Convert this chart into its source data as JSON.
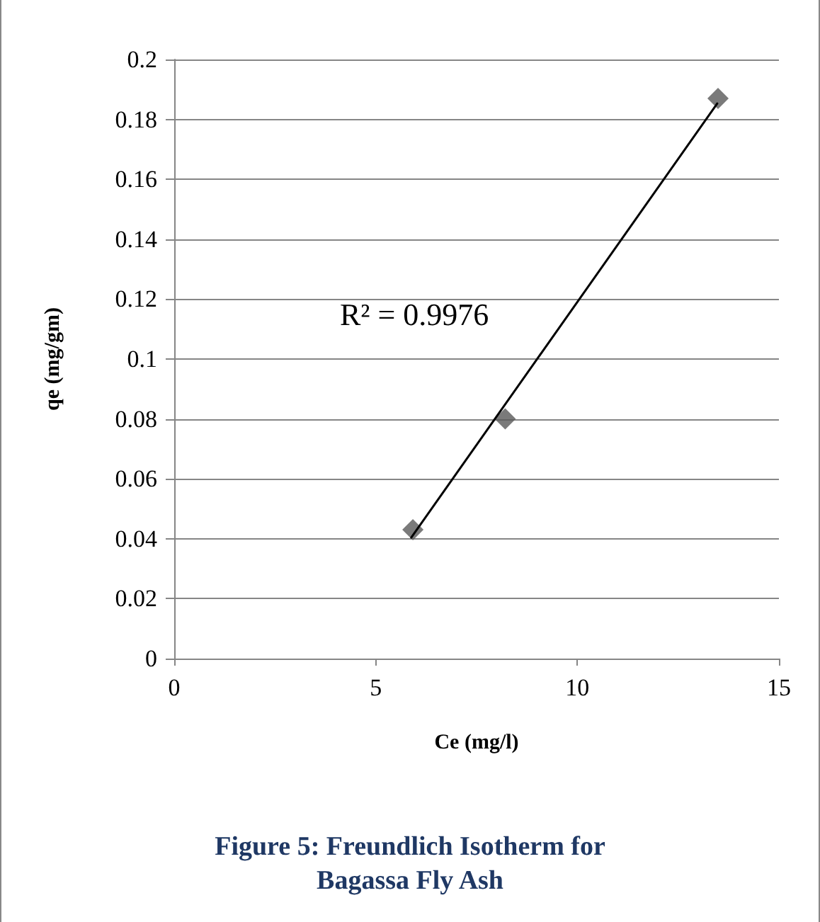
{
  "chart_data": {
    "type": "scatter",
    "title": "Figure 5: Freundlich Isotherm for\nBagassa Fly Ash",
    "xlabel": "Ce (mg/l)",
    "ylabel": "qe (mg/gm)",
    "series": [
      {
        "color": "#595959",
        "marker": "diamond",
        "x": [
          5.92,
          8.21,
          13.49
        ],
        "values": [
          0.043,
          0.08,
          0.187
        ]
      },
      {
        "type": "line",
        "color": "#000000",
        "marker": "none",
        "line_style": "solid",
        "x": [
          5.88,
          13.47
        ],
        "values": [
          0.0404,
          0.1853
        ]
      }
    ],
    "annotations": [
      "R² = 0.9976"
    ],
    "xlim": [
      0,
      15
    ],
    "xticks": [
      0,
      5,
      10,
      15
    ],
    "ylim": [
      0,
      0.2
    ],
    "yticks": [
      0,
      0.02,
      0.04,
      0.06,
      0.08,
      0.1,
      0.12,
      0.14,
      0.16,
      0.18,
      0.2
    ],
    "grid": "y"
  }
}
